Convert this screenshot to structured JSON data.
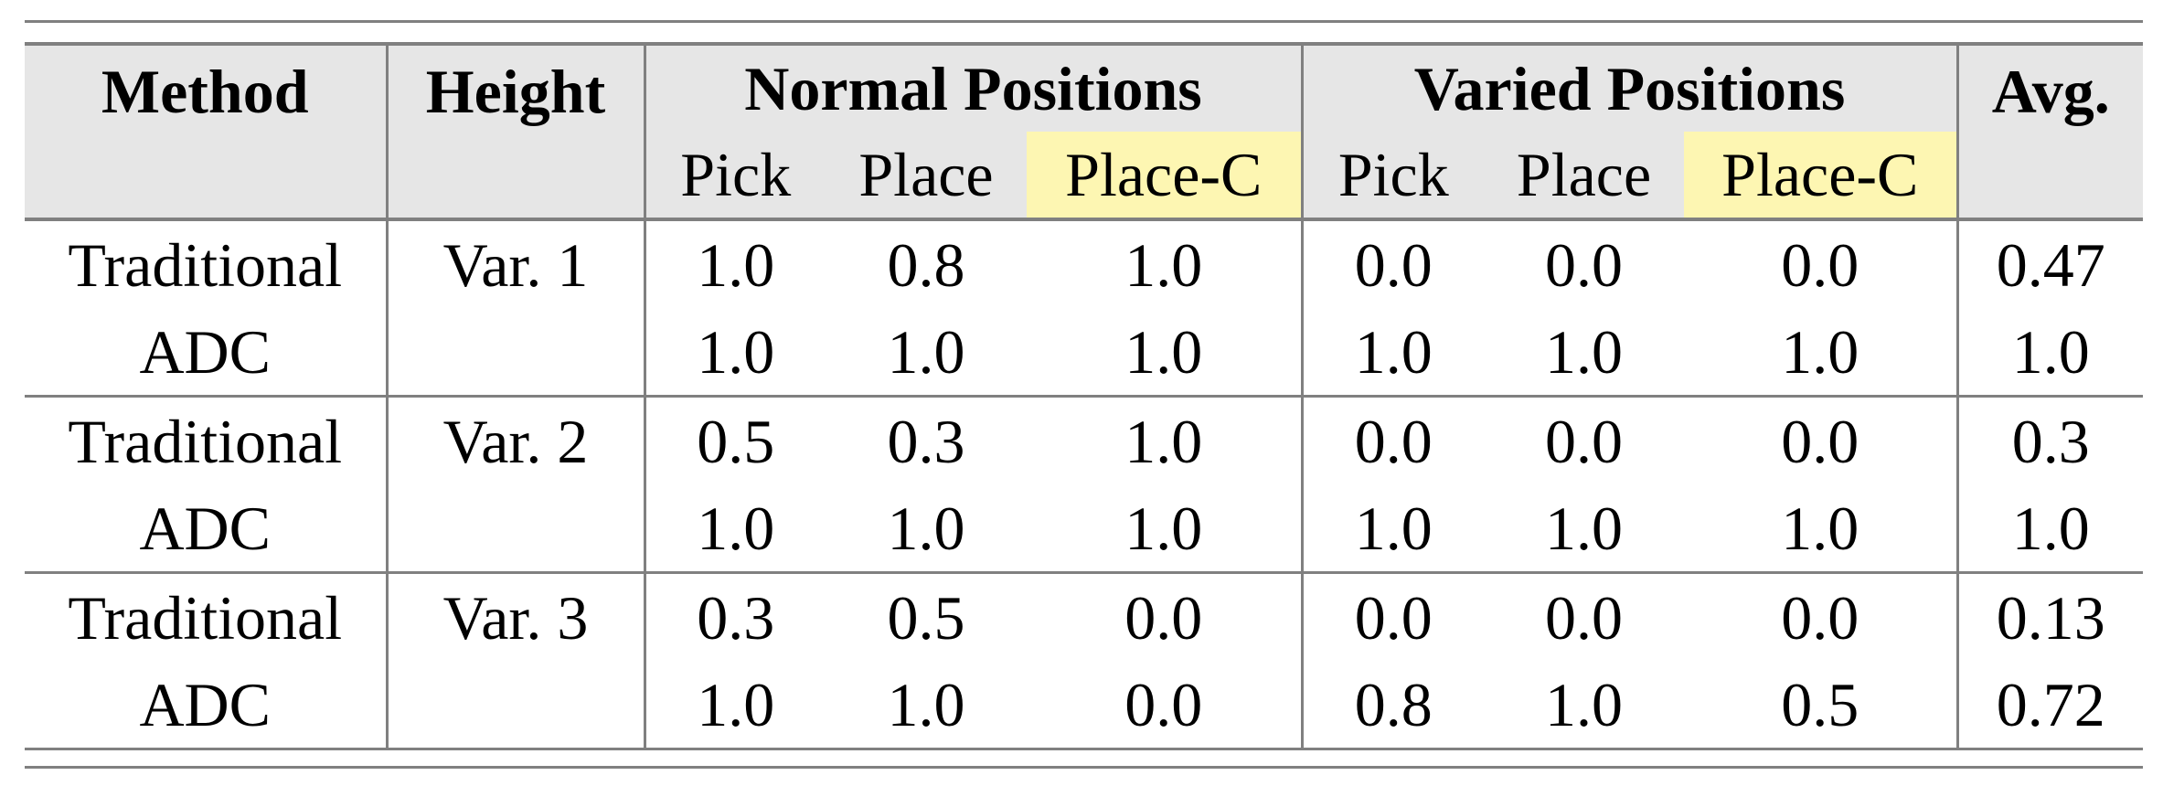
{
  "colors": {
    "header_bg": "#e6e6e6",
    "highlight": "#fdf6b2",
    "rule": "#808080"
  },
  "headers": {
    "method": "Method",
    "height": "Height",
    "normal": "Normal Positions",
    "varied": "Varied Positions",
    "avg": "Avg.",
    "sub": [
      "Pick",
      "Place",
      "Place-C",
      "Pick",
      "Place",
      "Place-C"
    ]
  },
  "rows": [
    {
      "method": "Traditional",
      "height": "Var. 1",
      "values": [
        "1.0",
        "0.8",
        "1.0",
        "0.0",
        "0.0",
        "0.0"
      ],
      "avg": "0.47"
    },
    {
      "method": "ADC",
      "height": "",
      "values": [
        "1.0",
        "1.0",
        "1.0",
        "1.0",
        "1.0",
        "1.0"
      ],
      "avg": "1.0"
    },
    {
      "method": "Traditional",
      "height": "Var. 2",
      "values": [
        "0.5",
        "0.3",
        "1.0",
        "0.0",
        "0.0",
        "0.0"
      ],
      "avg": "0.3"
    },
    {
      "method": "ADC",
      "height": "",
      "values": [
        "1.0",
        "1.0",
        "1.0",
        "1.0",
        "1.0",
        "1.0"
      ],
      "avg": "1.0"
    },
    {
      "method": "Traditional",
      "height": "Var. 3",
      "values": [
        "0.3",
        "0.5",
        "0.0",
        "0.0",
        "0.0",
        "0.0"
      ],
      "avg": "0.13"
    },
    {
      "method": "ADC",
      "height": "",
      "values": [
        "1.0",
        "1.0",
        "0.0",
        "0.8",
        "1.0",
        "0.5"
      ],
      "avg": "0.72"
    }
  ]
}
